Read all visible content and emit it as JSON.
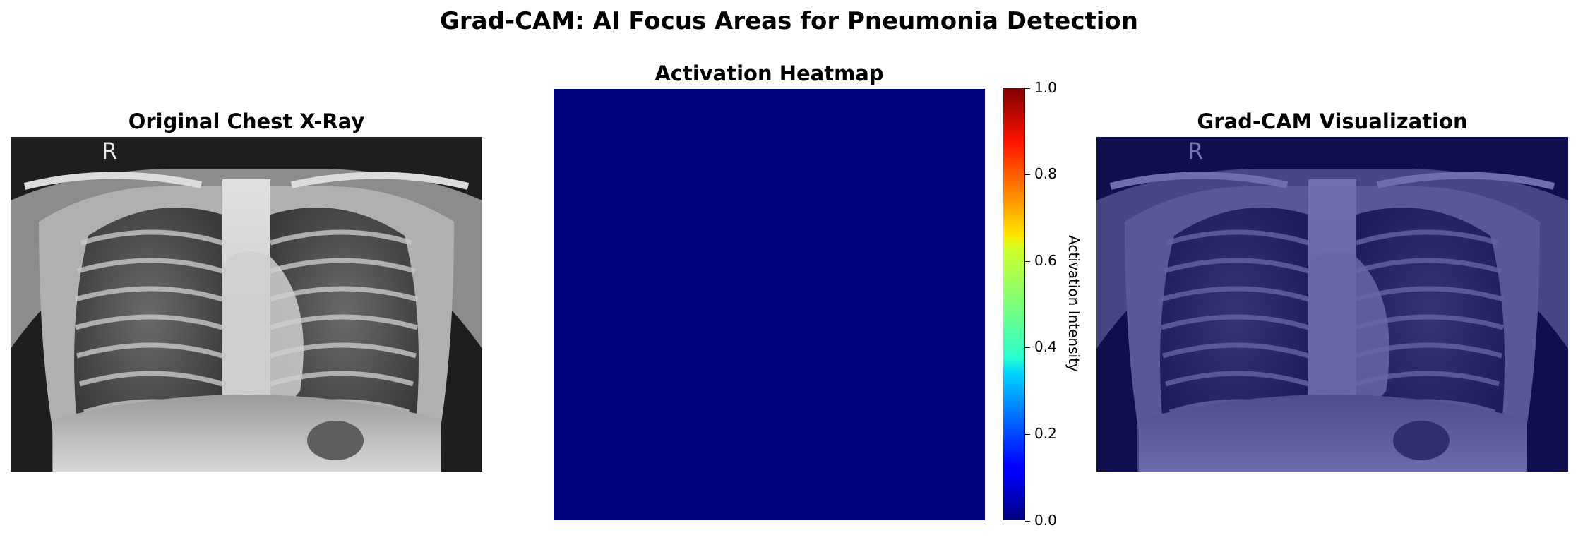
{
  "figure": {
    "title": "Grad-CAM: AI Focus Areas for Pneumonia Detection"
  },
  "panels": [
    {
      "title": "Original Chest X-Ray",
      "image_letter": "R"
    },
    {
      "title": "Activation Heatmap"
    },
    {
      "title": "Grad-CAM Visualization",
      "image_letter": "R"
    }
  ],
  "heatmap": {
    "colormap": "jet",
    "uniform_value": 0.0,
    "fill_color": "#00007f"
  },
  "colorbar": {
    "label": "Activation Intensity",
    "ticks": [
      "0.0",
      "0.2",
      "0.4",
      "0.6",
      "0.8",
      "1.0"
    ],
    "range": [
      0.0,
      1.0
    ]
  },
  "overlay": {
    "tint_color": "#000080",
    "tint_opacity": 0.5
  }
}
